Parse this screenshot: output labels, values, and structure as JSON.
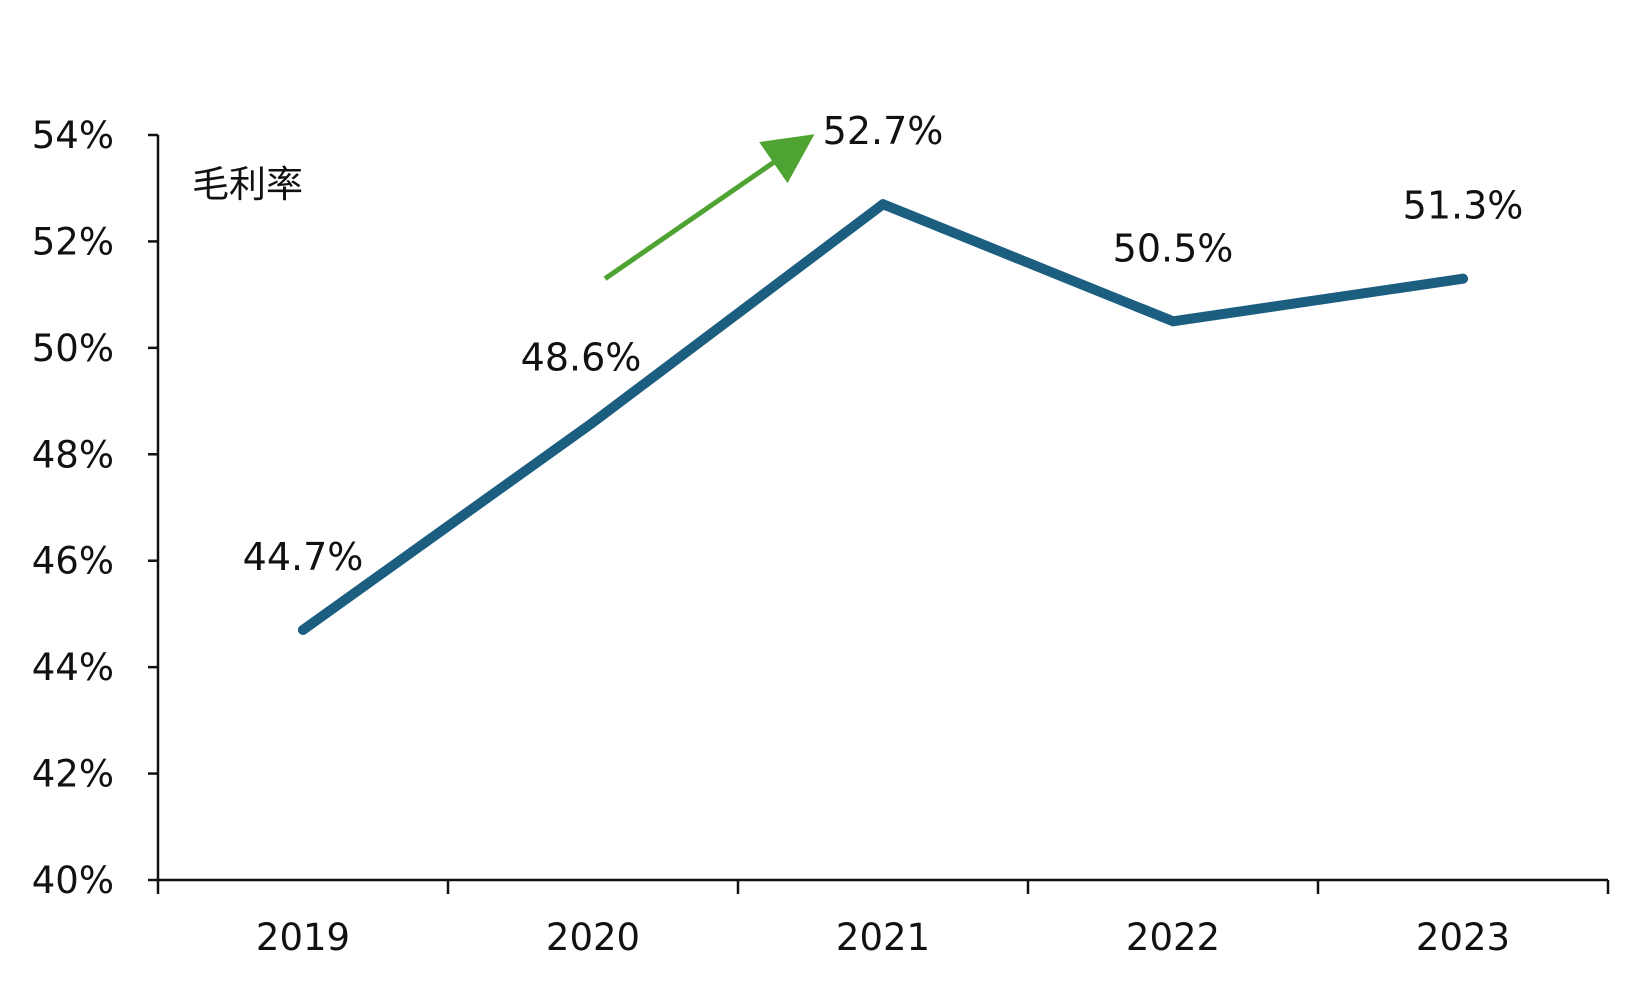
{
  "chart_data": {
    "type": "line",
    "categories": [
      "2019",
      "2020",
      "2021",
      "2022",
      "2023"
    ],
    "series": [
      {
        "name": "毛利率",
        "values": [
          44.7,
          48.6,
          52.7,
          50.5,
          51.3
        ],
        "labels": [
          "44.7%",
          "48.6%",
          "52.7%",
          "50.5%",
          "51.3%"
        ],
        "color": "#1b5e80"
      }
    ],
    "y_ticks": [
      "40%",
      "42%",
      "44%",
      "46%",
      "48%",
      "50%",
      "52%",
      "54%"
    ],
    "ylim": [
      40,
      54
    ],
    "y_step": 2,
    "grid": false,
    "legend_placement": "top-left",
    "annotation": {
      "type": "arrow",
      "color": "#4fa332",
      "direction": "up-right"
    }
  }
}
